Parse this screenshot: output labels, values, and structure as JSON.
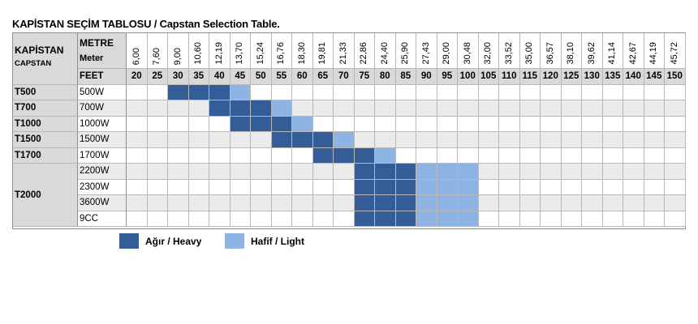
{
  "title": "KAPİSTAN SEÇİM TABLOSU / Capstan Selection Table.",
  "header": {
    "capstan": "KAPİSTAN",
    "capstan_sub": "CAPSTAN",
    "metre": "METRE",
    "meter": "Meter",
    "feet": "FEET"
  },
  "meters": [
    "6,00",
    "7,60",
    "9,00",
    "10,60",
    "12,19",
    "13,70",
    "15,24",
    "16,76",
    "18,30",
    "19,81",
    "21,33",
    "22,86",
    "24,40",
    "25,90",
    "27,43",
    "29,00",
    "30,48",
    "32,00",
    "33,52",
    "35,00",
    "36,57",
    "38,10",
    "39,62",
    "41,14",
    "42,67",
    "44,19",
    "45,72"
  ],
  "feet": [
    "20",
    "25",
    "30",
    "35",
    "40",
    "45",
    "50",
    "55",
    "60",
    "65",
    "70",
    "75",
    "80",
    "85",
    "90",
    "95",
    "100",
    "105",
    "110",
    "115",
    "120",
    "125",
    "130",
    "135",
    "140",
    "145",
    "150"
  ],
  "rows": [
    {
      "model": "T500",
      "power": "500W",
      "heavy": [
        30,
        35,
        40
      ],
      "light": [
        45
      ]
    },
    {
      "model": "T700",
      "power": "700W",
      "heavy": [
        40,
        45,
        50
      ],
      "light": [
        55
      ]
    },
    {
      "model": "T1000",
      "power": "1000W",
      "heavy": [
        45,
        50,
        55
      ],
      "light": [
        60
      ]
    },
    {
      "model": "T1500",
      "power": "1500W",
      "heavy": [
        55,
        60,
        65
      ],
      "light": [
        70
      ]
    },
    {
      "model": "T1700",
      "power": "1700W",
      "heavy": [
        65,
        70,
        75
      ],
      "light": [
        80
      ]
    },
    {
      "model": "T2000",
      "power": "2200W",
      "heavy": [
        75,
        80,
        85
      ],
      "light": [
        90,
        95,
        100
      ]
    },
    {
      "model": "",
      "power": "2300W",
      "heavy": [
        75,
        80,
        85
      ],
      "light": [
        90,
        95,
        100
      ]
    },
    {
      "model": "",
      "power": "3600W",
      "heavy": [
        75,
        80,
        85
      ],
      "light": [
        90,
        95,
        100
      ]
    },
    {
      "model": "",
      "power": "9CC",
      "heavy": [
        75,
        80,
        85
      ],
      "light": [
        90,
        95,
        100
      ]
    }
  ],
  "legend": {
    "heavy": "Ağır / Heavy",
    "light": "Hafif / Light",
    "heavy_color": "#345c97",
    "light_color": "#8eb4e3"
  }
}
